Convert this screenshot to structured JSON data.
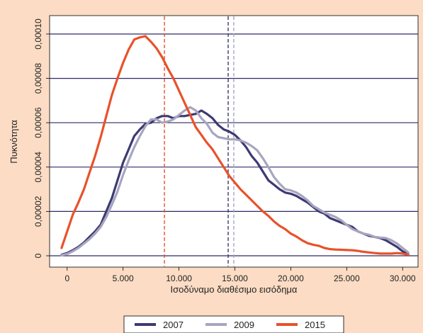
{
  "chart_data": {
    "type": "line",
    "title": "",
    "xlabel": "Ισοδύναμο διαθέσιμο εισόδημα",
    "ylabel": "Πυκνότητα",
    "xlim": [
      -1000,
      31000
    ],
    "ylim": [
      0,
      0.0001
    ],
    "x_ticks": [
      0,
      5000,
      10000,
      15000,
      20000,
      25000,
      30000
    ],
    "x_tick_labels": [
      "0",
      "5.000",
      "10.000",
      "15.000",
      "20.000",
      "25.000",
      "30.000"
    ],
    "y_ticks": [
      0,
      2e-05,
      4e-05,
      6e-05,
      8e-05,
      0.0001
    ],
    "y_tick_labels": [
      "0",
      "0,00002",
      "0,00004",
      "0,00006",
      "0,00008",
      "0,00010"
    ],
    "grid": "horizontal",
    "legend_position": "bottom",
    "series": [
      {
        "name": "2007",
        "color": "#3D3A72",
        "x": [
          -500,
          0,
          500,
          1000,
          1500,
          2000,
          2500,
          3000,
          3500,
          4000,
          4500,
          5000,
          5500,
          6000,
          6500,
          7000,
          7500,
          8000,
          8500,
          9000,
          9500,
          10000,
          10500,
          11000,
          11500,
          12000,
          12500,
          13000,
          13500,
          14000,
          14500,
          15000,
          15500,
          16000,
          16500,
          17000,
          17500,
          18000,
          18500,
          19000,
          19500,
          20000,
          20500,
          21000,
          21500,
          22000,
          22500,
          23000,
          23500,
          24000,
          24500,
          25000,
          25500,
          26000,
          26500,
          27000,
          27500,
          28000,
          28500,
          29000,
          29500,
          30000,
          30500
        ],
        "y": [
          5e-07,
          1.2e-06,
          2.5e-06,
          4e-06,
          6e-06,
          8.5e-06,
          1.1e-05,
          1.4e-05,
          2e-05,
          2.6e-05,
          3.4e-05,
          4.2e-05,
          4.8e-05,
          5.4e-05,
          5.7e-05,
          5.95e-05,
          6e-05,
          6.2e-05,
          6.3e-05,
          6.3e-05,
          6.2e-05,
          6.3e-05,
          6.3e-05,
          6.35e-05,
          6.4e-05,
          6.55e-05,
          6.4e-05,
          6.2e-05,
          5.9e-05,
          5.7e-05,
          5.6e-05,
          5.45e-05,
          5.2e-05,
          4.9e-05,
          4.5e-05,
          4.2e-05,
          3.8e-05,
          3.4e-05,
          3.2e-05,
          3e-05,
          2.85e-05,
          2.8e-05,
          2.7e-05,
          2.55e-05,
          2.4e-05,
          2.2e-05,
          2e-05,
          1.9e-05,
          1.7e-05,
          1.6e-05,
          1.5e-05,
          1.4e-05,
          1.3e-05,
          1.1e-05,
          1e-05,
          9e-06,
          8.5e-06,
          8e-06,
          7e-06,
          5.5e-06,
          4e-06,
          2e-06,
          8e-07
        ]
      },
      {
        "name": "2009",
        "color": "#A7A5BF",
        "x": [
          -500,
          0,
          500,
          1000,
          1500,
          2000,
          2500,
          3000,
          3500,
          4000,
          4500,
          5000,
          5500,
          6000,
          6500,
          7000,
          7500,
          8000,
          8500,
          9000,
          9500,
          10000,
          10500,
          11000,
          11500,
          12000,
          12500,
          13000,
          13500,
          14000,
          14500,
          15000,
          15500,
          16000,
          16500,
          17000,
          17500,
          18000,
          18500,
          19000,
          19500,
          20000,
          20500,
          21000,
          21500,
          22000,
          22500,
          23000,
          23500,
          24000,
          24500,
          25000,
          25500,
          26000,
          26500,
          27000,
          27500,
          28000,
          28500,
          29000,
          29500,
          30000,
          30500
        ],
        "y": [
          3e-07,
          8e-07,
          2e-06,
          3.5e-06,
          5.5e-06,
          7.5e-06,
          1e-05,
          1.3e-05,
          1.75e-05,
          2.3e-05,
          2.9e-05,
          3.65e-05,
          4.3e-05,
          4.9e-05,
          5.4e-05,
          5.85e-05,
          6.15e-05,
          6.15e-05,
          6e-05,
          6.05e-05,
          6.15e-05,
          6.35e-05,
          6.55e-05,
          6.7e-05,
          6.55e-05,
          6.2e-05,
          5.95e-05,
          5.55e-05,
          5.35e-05,
          5.3e-05,
          5.25e-05,
          5.25e-05,
          5.2e-05,
          5.1e-05,
          4.95e-05,
          4.75e-05,
          4.4e-05,
          4e-05,
          3.55e-05,
          3.25e-05,
          3e-05,
          2.95e-05,
          2.85e-05,
          2.7e-05,
          2.5e-05,
          2.25e-05,
          2.1e-05,
          1.95e-05,
          1.85e-05,
          1.75e-05,
          1.6e-05,
          1.4e-05,
          1.2e-05,
          1.1e-05,
          1e-05,
          9.5e-06,
          8.5e-06,
          8.2e-06,
          8e-06,
          7e-06,
          5.5e-06,
          3.5e-06,
          1.5e-06
        ]
      },
      {
        "name": "2015",
        "color": "#E8522A",
        "x": [
          -500,
          0,
          500,
          1000,
          1500,
          2000,
          2500,
          3000,
          3500,
          4000,
          4500,
          5000,
          5500,
          6000,
          6500,
          7000,
          7500,
          8000,
          8500,
          9000,
          9500,
          10000,
          10500,
          11000,
          11500,
          12000,
          12500,
          13000,
          13500,
          14000,
          14500,
          15000,
          15500,
          16000,
          16500,
          17000,
          17500,
          18000,
          18500,
          19000,
          19500,
          20000,
          20500,
          21000,
          21500,
          22000,
          22500,
          23000,
          23500,
          24000,
          24500,
          25000,
          25500,
          26000,
          26500,
          27000,
          27500,
          28000,
          28500,
          29000,
          29500,
          30000,
          30500
        ],
        "y": [
          3.5e-06,
          1.1e-05,
          1.85e-05,
          2.4e-05,
          3e-05,
          3.75e-05,
          4.5e-05,
          5.35e-05,
          6.3e-05,
          7.25e-05,
          8e-05,
          8.7e-05,
          9.3e-05,
          9.75e-05,
          9.85e-05,
          9.9e-05,
          9.65e-05,
          9.35e-05,
          8.95e-05,
          8.45e-05,
          8e-05,
          7.45e-05,
          6.9e-05,
          6.35e-05,
          5.8e-05,
          5.45e-05,
          5.1e-05,
          4.8e-05,
          4.4e-05,
          4e-05,
          3.6e-05,
          3.3e-05,
          3e-05,
          2.75e-05,
          2.5e-05,
          2.25e-05,
          2e-05,
          1.8e-05,
          1.55e-05,
          1.35e-05,
          1.2e-05,
          1e-05,
          8.7e-06,
          7e-06,
          5.7e-06,
          5e-06,
          4.5e-06,
          3.5e-06,
          3e-06,
          2.8e-06,
          2.7e-06,
          2.6e-06,
          2.5e-06,
          2.2e-06,
          1.8e-06,
          1.5e-06,
          1.2e-06,
          1e-06,
          1e-06,
          1e-06,
          1.2e-06,
          1e-06,
          5e-07
        ]
      }
    ],
    "reference_lines": [
      {
        "series": "2007",
        "x": 14400,
        "color": "#3D3A72",
        "style": "dashed"
      },
      {
        "series": "2009",
        "x": 14900,
        "color": "#A7A5BF",
        "style": "dashed"
      },
      {
        "series": "2015",
        "x": 8700,
        "color": "#E8522A",
        "style": "dashed"
      }
    ]
  }
}
